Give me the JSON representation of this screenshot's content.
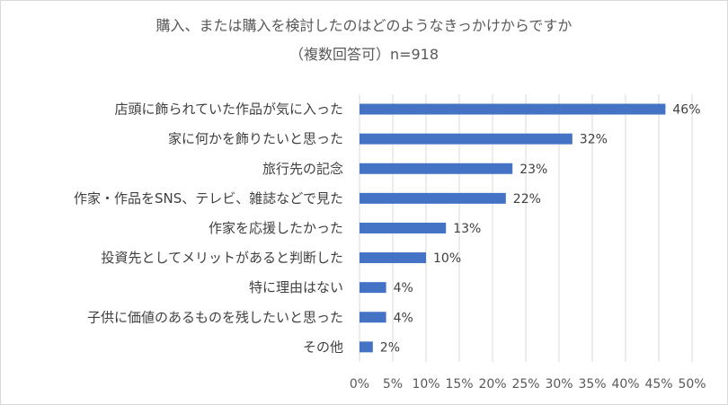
{
  "chart_data": {
    "type": "bar",
    "orientation": "horizontal",
    "title": "購入、または購入を検討したのはどのようなきっかけからですか",
    "subtitle": "（複数回答可）n=918",
    "categories": [
      "店頭に飾られていた作品が気に入った",
      "家に何かを飾りたいと思った",
      "旅行先の記念",
      "作家・作品をSNS、テレビ、雑誌などで見た",
      "作家を応援したかった",
      "投資先としてメリットがあると判断した",
      "特に理由はない",
      "子供に価値のあるものを残したいと思った",
      "その他"
    ],
    "values": [
      46,
      32,
      23,
      22,
      13,
      10,
      4,
      4,
      2
    ],
    "data_labels": [
      "46%",
      "32%",
      "23%",
      "22%",
      "13%",
      "10%",
      "4%",
      "4%",
      "2%"
    ],
    "xlim": [
      0,
      50
    ],
    "x_ticks": [
      0,
      5,
      10,
      15,
      20,
      25,
      30,
      35,
      40,
      45,
      50
    ],
    "x_tick_labels": [
      "0%",
      "5%",
      "10%",
      "15%",
      "20%",
      "25%",
      "30%",
      "35%",
      "40%",
      "45%",
      "50%"
    ],
    "grid": true,
    "legend": "none",
    "bar_color": "#4472C4",
    "grid_color": "#d9d9d9"
  }
}
